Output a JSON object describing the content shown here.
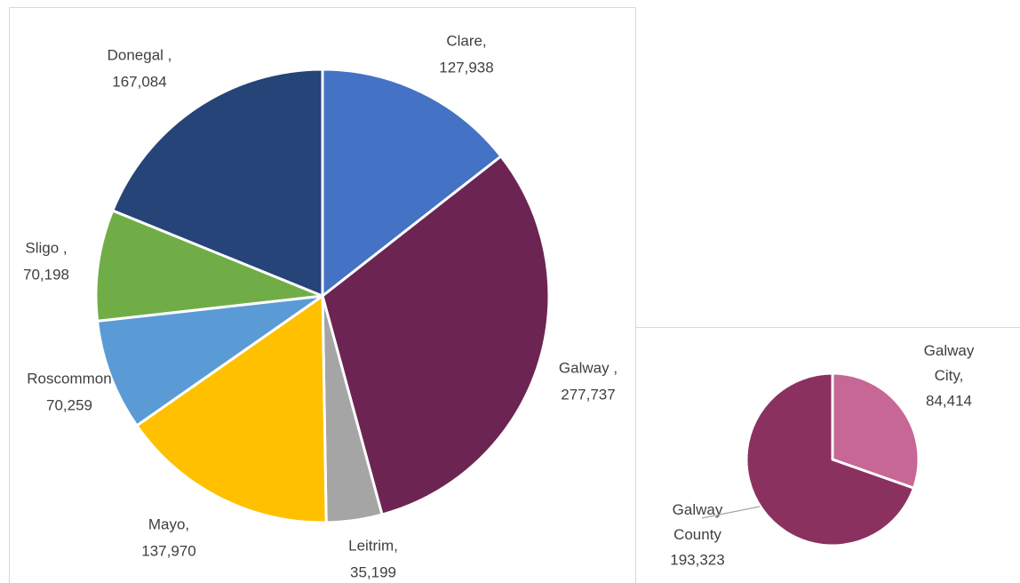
{
  "chart_data": [
    {
      "type": "pie",
      "categories": [
        "Clare,",
        "Galway ,",
        "Leitrim,",
        "Mayo,",
        "Roscommon",
        "Sligo ,",
        "Donegal ,"
      ],
      "values": [
        127938,
        277737,
        35199,
        137970,
        70259,
        70198,
        167084
      ],
      "value_labels": [
        "127,938",
        "277,737",
        "35,199",
        "137,970",
        "70,259",
        "70,198",
        "167,084"
      ],
      "colors": [
        "#4472c4",
        "#6c2453",
        "#a5a5a5",
        "#ffc000",
        "#5b9bd5",
        "#70ad47",
        "#264478"
      ]
    },
    {
      "type": "pie",
      "categories": [
        "Galway City,",
        "Galway County"
      ],
      "values": [
        84414,
        193323
      ],
      "value_labels": [
        "84,414",
        "193,323"
      ],
      "colors": [
        "#c76796",
        "#8b3160"
      ]
    }
  ]
}
